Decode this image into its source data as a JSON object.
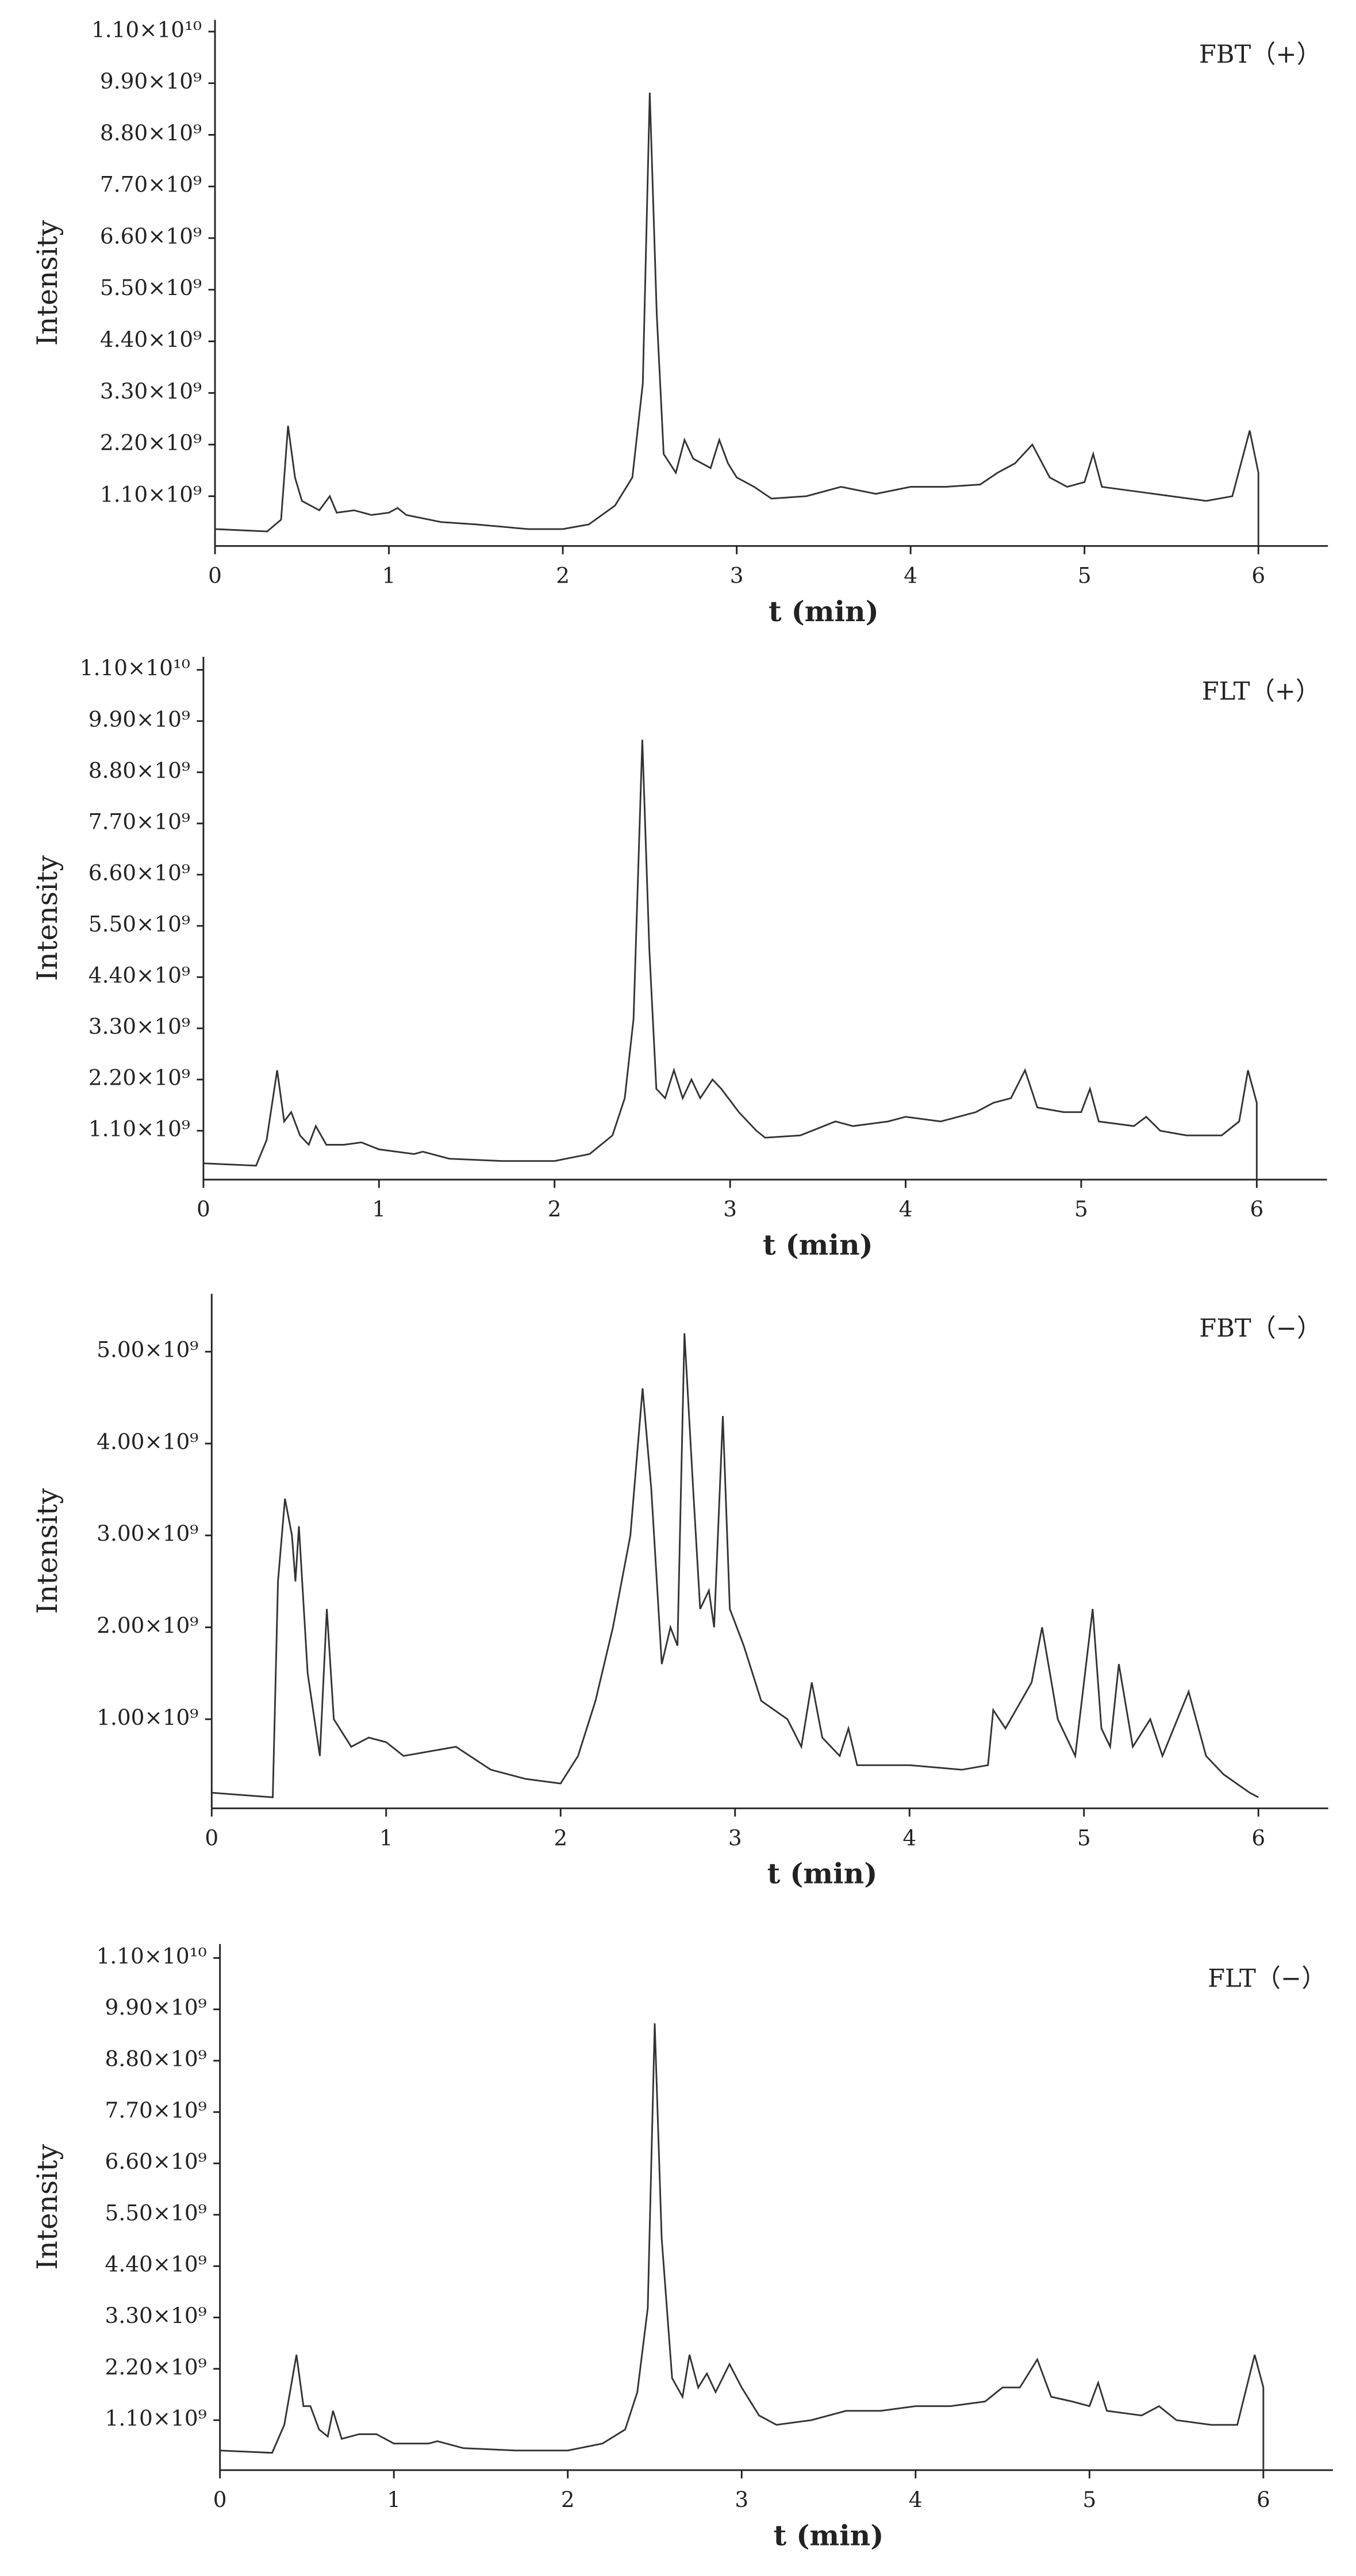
{
  "chart_data": [
    {
      "type": "line",
      "annotation": "FBT（+）",
      "xlabel": "t (min)",
      "ylabel": "Intensity",
      "color": "#333333",
      "x": [
        0,
        0.3,
        0.38,
        0.42,
        0.46,
        0.5,
        0.6,
        0.66,
        0.7,
        0.8,
        0.9,
        1.0,
        1.05,
        1.1,
        1.3,
        1.5,
        1.8,
        2.0,
        2.15,
        2.3,
        2.4,
        2.46,
        2.5,
        2.54,
        2.58,
        2.65,
        2.7,
        2.75,
        2.8,
        2.85,
        2.9,
        2.95,
        3.0,
        3.1,
        3.2,
        3.4,
        3.6,
        3.8,
        4.0,
        4.2,
        4.4,
        4.5,
        4.6,
        4.7,
        4.8,
        4.9,
        5.0,
        5.05,
        5.1,
        5.3,
        5.5,
        5.7,
        5.85,
        5.95,
        6.0,
        6.0
      ],
      "values": [
        400000000.0,
        350000000.0,
        600000000.0,
        2600000000.0,
        1500000000.0,
        1000000000.0,
        800000000.0,
        1100000000.0,
        750000000.0,
        800000000.0,
        700000000.0,
        750000000.0,
        850000000.0,
        700000000.0,
        550000000.0,
        500000000.0,
        400000000.0,
        400000000.0,
        500000000.0,
        900000000.0,
        1500000000.0,
        3500000000.0,
        9700000000.0,
        5000000000.0,
        2000000000.0,
        1600000000.0,
        2300000000.0,
        1900000000.0,
        1800000000.0,
        1700000000.0,
        2300000000.0,
        1800000000.0,
        1500000000.0,
        1300000000.0,
        1050000000.0,
        1100000000.0,
        1300000000.0,
        1150000000.0,
        1300000000.0,
        1300000000.0,
        1350000000.0,
        1600000000.0,
        1800000000.0,
        2200000000.0,
        1500000000.0,
        1300000000.0,
        1400000000.0,
        2000000000.0,
        1300000000.0,
        1200000000.0,
        1100000000.0,
        1000000000.0,
        1100000000.0,
        2500000000.0,
        1600000000.0,
        50000000.0
      ],
      "xlim": [
        0,
        6.4
      ],
      "xticks": [
        0,
        1,
        2,
        3,
        4,
        5,
        6
      ],
      "ylim": [
        40000000.0,
        11250000000.0
      ],
      "yticks": [
        {
          "value": 1100000000.0,
          "label": "1.10×10⁹"
        },
        {
          "value": 2200000000.0,
          "label": "2.20×10⁹"
        },
        {
          "value": 3300000000.0,
          "label": "3.30×10⁹"
        },
        {
          "value": 4400000000.0,
          "label": "4.40×10⁹"
        },
        {
          "value": 5500000000.0,
          "label": "5.50×10⁹"
        },
        {
          "value": 6600000000.0,
          "label": "6.60×10⁹"
        },
        {
          "value": 7700000000.0,
          "label": "7.70×10⁹"
        },
        {
          "value": 8800000000.0,
          "label": "8.80×10⁹"
        },
        {
          "value": 9900000000.0,
          "label": "9.90×10⁹"
        },
        {
          "value": 11000000000.0,
          "label": "1.10×10¹⁰"
        }
      ]
    },
    {
      "type": "line",
      "annotation": "FLT（+）",
      "xlabel": "t (min)",
      "ylabel": "Intensity",
      "color": "#333333",
      "x": [
        0,
        0.3,
        0.36,
        0.42,
        0.46,
        0.5,
        0.55,
        0.6,
        0.64,
        0.7,
        0.8,
        0.9,
        1.0,
        1.2,
        1.25,
        1.4,
        1.7,
        2.0,
        2.2,
        2.33,
        2.4,
        2.45,
        2.5,
        2.54,
        2.58,
        2.63,
        2.68,
        2.73,
        2.78,
        2.83,
        2.9,
        2.95,
        3.05,
        3.15,
        3.2,
        3.4,
        3.6,
        3.7,
        3.9,
        4.0,
        4.2,
        4.4,
        4.5,
        4.6,
        4.68,
        4.75,
        4.9,
        5.0,
        5.05,
        5.1,
        5.3,
        5.37,
        5.45,
        5.6,
        5.8,
        5.9,
        5.95,
        6.0,
        6.0
      ],
      "values": [
        400000000.0,
        350000000.0,
        900000000.0,
        2400000000.0,
        1300000000.0,
        1500000000.0,
        1000000000.0,
        800000000.0,
        1200000000.0,
        800000000.0,
        800000000.0,
        850000000.0,
        700000000.0,
        600000000.0,
        650000000.0,
        500000000.0,
        450000000.0,
        450000000.0,
        600000000.0,
        1000000000.0,
        1800000000.0,
        3500000000.0,
        9500000000.0,
        5000000000.0,
        2000000000.0,
        1800000000.0,
        2400000000.0,
        1800000000.0,
        2200000000.0,
        1800000000.0,
        2200000000.0,
        2000000000.0,
        1500000000.0,
        1100000000.0,
        950000000.0,
        1000000000.0,
        1300000000.0,
        1200000000.0,
        1300000000.0,
        1400000000.0,
        1300000000.0,
        1500000000.0,
        1700000000.0,
        1800000000.0,
        2400000000.0,
        1600000000.0,
        1500000000.0,
        1500000000.0,
        2000000000.0,
        1300000000.0,
        1200000000.0,
        1400000000.0,
        1100000000.0,
        1000000000.0,
        1000000000.0,
        1300000000.0,
        2400000000.0,
        1700000000.0,
        50000000.0
      ],
      "xlim": [
        0,
        6.4
      ],
      "xticks": [
        0,
        1,
        2,
        3,
        4,
        5,
        6
      ],
      "ylim": [
        50000000.0,
        11280000000.0
      ],
      "yticks": [
        {
          "value": 1100000000.0,
          "label": "1.10×10⁹"
        },
        {
          "value": 2200000000.0,
          "label": "2.20×10⁹"
        },
        {
          "value": 3300000000.0,
          "label": "3.30×10⁹"
        },
        {
          "value": 4400000000.0,
          "label": "4.40×10⁹"
        },
        {
          "value": 5500000000.0,
          "label": "5.50×10⁹"
        },
        {
          "value": 6600000000.0,
          "label": "6.60×10⁹"
        },
        {
          "value": 7700000000.0,
          "label": "7.70×10⁹"
        },
        {
          "value": 8800000000.0,
          "label": "8.80×10⁹"
        },
        {
          "value": 9900000000.0,
          "label": "9.90×10⁹"
        },
        {
          "value": 11000000000.0,
          "label": "1.10×10¹⁰"
        }
      ]
    },
    {
      "type": "line",
      "annotation": "FBT（−）",
      "xlabel": "t (min)",
      "ylabel": "Intensity",
      "color": "#333333",
      "x": [
        0,
        0.35,
        0.38,
        0.42,
        0.46,
        0.48,
        0.5,
        0.55,
        0.62,
        0.66,
        0.7,
        0.8,
        0.9,
        1.0,
        1.1,
        1.4,
        1.6,
        1.8,
        2.0,
        2.1,
        2.2,
        2.3,
        2.4,
        2.47,
        2.52,
        2.58,
        2.63,
        2.67,
        2.71,
        2.76,
        2.8,
        2.85,
        2.88,
        2.93,
        2.97,
        3.05,
        3.15,
        3.3,
        3.38,
        3.44,
        3.5,
        3.6,
        3.65,
        3.7,
        4.0,
        4.3,
        4.45,
        4.48,
        4.55,
        4.7,
        4.76,
        4.85,
        4.95,
        5.05,
        5.1,
        5.15,
        5.2,
        5.28,
        5.38,
        5.45,
        5.6,
        5.7,
        5.8,
        5.95,
        6.0
      ],
      "values": [
        200000000.0,
        150000000.0,
        2500000000.0,
        3400000000.0,
        3000000000.0,
        2500000000.0,
        3100000000.0,
        1500000000.0,
        600000000.0,
        2200000000.0,
        1000000000.0,
        700000000.0,
        800000000.0,
        750000000.0,
        600000000.0,
        700000000.0,
        450000000.0,
        350000000.0,
        300000000.0,
        600000000.0,
        1200000000.0,
        2000000000.0,
        3000000000.0,
        4600000000.0,
        3500000000.0,
        1600000000.0,
        2000000000.0,
        1800000000.0,
        5200000000.0,
        3500000000.0,
        2200000000.0,
        2400000000.0,
        2000000000.0,
        4300000000.0,
        2200000000.0,
        1800000000.0,
        1200000000.0,
        1000000000.0,
        700000000.0,
        1400000000.0,
        800000000.0,
        600000000.0,
        900000000.0,
        500000000.0,
        500000000.0,
        450000000.0,
        500000000.0,
        1100000000.0,
        900000000.0,
        1400000000.0,
        2000000000.0,
        1000000000.0,
        600000000.0,
        2200000000.0,
        900000000.0,
        700000000.0,
        1600000000.0,
        700000000.0,
        1000000000.0,
        600000000.0,
        1300000000.0,
        600000000.0,
        400000000.0,
        200000000.0,
        150000000.0
      ],
      "xlim": [
        0,
        6.4
      ],
      "xticks": [
        0,
        1,
        2,
        3,
        4,
        5,
        6
      ],
      "ylim": [
        30000000.0,
        5630000000.0
      ],
      "yticks": [
        {
          "value": 1000000000.0,
          "label": "1.00×10⁹"
        },
        {
          "value": 2000000000.0,
          "label": "2.00×10⁹"
        },
        {
          "value": 3000000000.0,
          "label": "3.00×10⁹"
        },
        {
          "value": 4000000000.0,
          "label": "4.00×10⁹"
        },
        {
          "value": 5000000000.0,
          "label": "5.00×10⁹"
        }
      ]
    },
    {
      "type": "line",
      "annotation": "FLT（−）",
      "xlabel": "t (min)",
      "ylabel": "Intensity",
      "color": "#333333",
      "x": [
        0,
        0.3,
        0.37,
        0.44,
        0.48,
        0.52,
        0.57,
        0.62,
        0.65,
        0.7,
        0.8,
        0.9,
        1.0,
        1.2,
        1.25,
        1.4,
        1.7,
        2.0,
        2.2,
        2.33,
        2.4,
        2.46,
        2.5,
        2.54,
        2.6,
        2.66,
        2.7,
        2.75,
        2.8,
        2.85,
        2.93,
        3.0,
        3.1,
        3.2,
        3.4,
        3.6,
        3.8,
        4.0,
        4.2,
        4.4,
        4.5,
        4.6,
        4.7,
        4.78,
        4.9,
        5.0,
        5.05,
        5.1,
        5.3,
        5.4,
        5.5,
        5.7,
        5.85,
        5.95,
        6.0,
        6.0
      ],
      "values": [
        450000000.0,
        400000000.0,
        1000000000.0,
        2500000000.0,
        1400000000.0,
        1400000000.0,
        900000000.0,
        750000000.0,
        1300000000.0,
        700000000.0,
        800000000.0,
        800000000.0,
        600000000.0,
        600000000.0,
        650000000.0,
        500000000.0,
        450000000.0,
        450000000.0,
        600000000.0,
        900000000.0,
        1700000000.0,
        3500000000.0,
        9600000000.0,
        5000000000.0,
        2000000000.0,
        1600000000.0,
        2500000000.0,
        1800000000.0,
        2100000000.0,
        1700000000.0,
        2300000000.0,
        1800000000.0,
        1200000000.0,
        1000000000.0,
        1100000000.0,
        1300000000.0,
        1300000000.0,
        1400000000.0,
        1400000000.0,
        1500000000.0,
        1800000000.0,
        1800000000.0,
        2400000000.0,
        1600000000.0,
        1500000000.0,
        1400000000.0,
        1900000000.0,
        1300000000.0,
        1200000000.0,
        1400000000.0,
        1100000000.0,
        1000000000.0,
        1000000000.0,
        2500000000.0,
        1800000000.0,
        50000000.0
      ],
      "xlim": [
        0,
        6.4
      ],
      "xticks": [
        0,
        1,
        2,
        3,
        4,
        5,
        6
      ],
      "ylim": [
        30000000.0,
        11300000000.0
      ],
      "yticks": [
        {
          "value": 1100000000.0,
          "label": "1.10×10⁹"
        },
        {
          "value": 2200000000.0,
          "label": "2.20×10⁹"
        },
        {
          "value": 3300000000.0,
          "label": "3.30×10⁹"
        },
        {
          "value": 4400000000.0,
          "label": "4.40×10⁹"
        },
        {
          "value": 5500000000.0,
          "label": "5.50×10⁹"
        },
        {
          "value": 6600000000.0,
          "label": "6.60×10⁹"
        },
        {
          "value": 7700000000.0,
          "label": "7.70×10⁹"
        },
        {
          "value": 8800000000.0,
          "label": "8.80×10⁹"
        },
        {
          "value": 9900000000.0,
          "label": "9.90×10⁹"
        },
        {
          "value": 11000000000.0,
          "label": "1.10×10¹⁰"
        }
      ]
    }
  ]
}
